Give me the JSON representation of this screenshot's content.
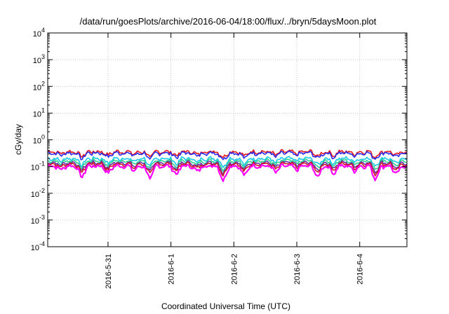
{
  "chart_data": {
    "type": "line",
    "title": "/data/run/goesPlots/archive/2016-06-04/18:00/flux/../bryn/5daysMoon.plot",
    "xlabel": "Coordinated Universal Time (UTC)",
    "ylabel": "cGy/day",
    "yscale": "log",
    "ylim": [
      0.0001,
      10000
    ],
    "y_ticks": [
      {
        "value": 0.0001,
        "base": "10",
        "exp": "-4"
      },
      {
        "value": 0.001,
        "base": "10",
        "exp": "-3"
      },
      {
        "value": 0.01,
        "base": "10",
        "exp": "-2"
      },
      {
        "value": 0.1,
        "base": "10",
        "exp": "-1"
      },
      {
        "value": 1,
        "base": "10",
        "exp": "0"
      },
      {
        "value": 10,
        "base": "10",
        "exp": "1"
      },
      {
        "value": 100,
        "base": "10",
        "exp": "2"
      },
      {
        "value": 1000,
        "base": "10",
        "exp": "3"
      },
      {
        "value": 10000,
        "base": "10",
        "exp": "4"
      }
    ],
    "xlim": [
      "2016-05-30T01:00",
      "2016-06-04T18:00"
    ],
    "x_ticks": [
      "2016-5-31",
      "2016-6-1",
      "2016-6-2",
      "2016-6-3",
      "2016-6-4"
    ],
    "x_tick_dates": [
      "2016-05-31",
      "2016-06-01",
      "2016-06-02",
      "2016-06-03",
      "2016-06-04"
    ],
    "grid": true,
    "series": [
      {
        "color": "#e8191c",
        "base": 0.36,
        "dip_scale": 0.55
      },
      {
        "color": "#2a2af0",
        "base": 0.32,
        "dip_scale": 0.6
      },
      {
        "color": "#18c8e8",
        "base": 0.2,
        "dip_scale": 0.7
      },
      {
        "color": "#30d090",
        "base": 0.165,
        "dip_scale": 0.75
      },
      {
        "color": "#6a2fa8",
        "base": 0.14,
        "dip_scale": 0.8
      },
      {
        "color": "#d01820",
        "base": 0.125,
        "dip_scale": 0.85
      },
      {
        "color": "#ff00ff",
        "base": 0.105,
        "dip_scale": 1.0
      }
    ],
    "dip_dates": [
      "2016-05-30T06:00",
      "2016-05-30T14:00",
      "2016-05-31T00:00",
      "2016-05-31T10:00",
      "2016-05-31T16:00",
      "2016-06-01T02:00",
      "2016-06-01T10:00",
      "2016-06-01T20:00",
      "2016-06-02T04:00",
      "2016-06-02T16:00",
      "2016-06-03T00:00",
      "2016-06-03T08:00",
      "2016-06-03T14:00",
      "2016-06-03T22:00",
      "2016-06-04T06:00",
      "2016-06-04T14:00"
    ],
    "dip_min": 0.022
  }
}
